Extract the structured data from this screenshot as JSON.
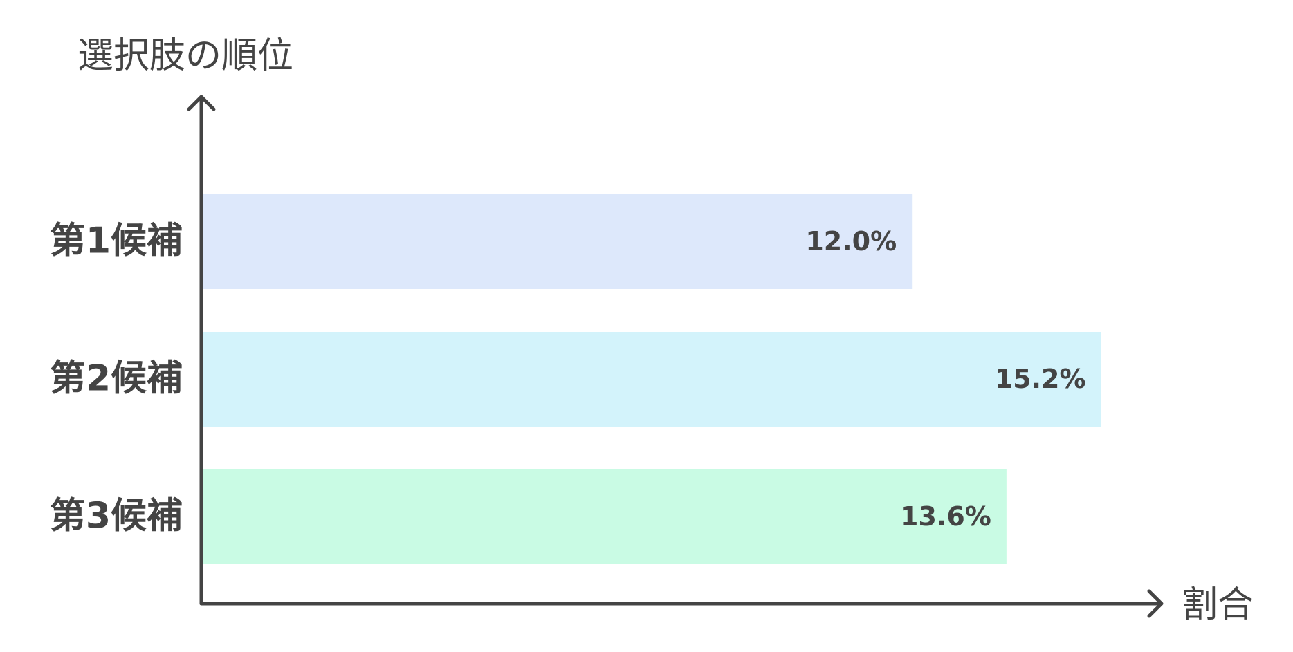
{
  "chart_data": {
    "type": "bar",
    "orientation": "horizontal",
    "y_label": "選択肢の順位",
    "x_label": "割合",
    "categories": [
      "第1候補",
      "第2候補",
      "第3候補"
    ],
    "values": [
      12.0,
      15.2,
      13.6
    ],
    "value_labels": [
      "12.0%",
      "15.2%",
      "13.6%"
    ],
    "colors": [
      "#dde8fb",
      "#d3f3fb",
      "#c9fbe4"
    ],
    "xlim": [
      0,
      16.2
    ]
  }
}
